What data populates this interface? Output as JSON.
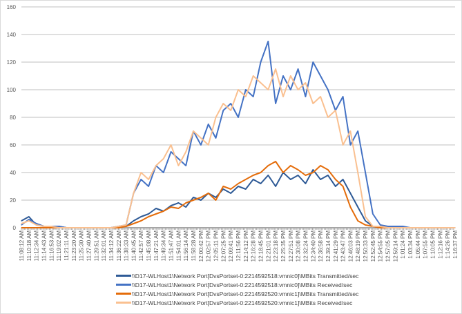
{
  "chart_data": {
    "type": "line",
    "title": "",
    "xlabel": "",
    "ylabel": "",
    "ylim": [
      0,
      160
    ],
    "yticks": [
      0,
      20,
      40,
      60,
      80,
      100,
      120,
      140,
      160
    ],
    "grid": true,
    "legend_position": "bottom",
    "categories": [
      "11:08:12 AM",
      "11:10:18 AM",
      "11:12:34 AM",
      "11:14:43 AM",
      "11:16:53 AM",
      "11:19:02 AM",
      "11:21:11 AM",
      "11:23:20 AM",
      "11:25:30 AM",
      "11:27:40 AM",
      "11:29:51 AM",
      "11:32:01 AM",
      "11:34:12 AM",
      "11:36:22 AM",
      "11:38:33 AM",
      "11:40:45 AM",
      "11:42:57 AM",
      "11:45:08 AM",
      "11:47:21 AM",
      "11:49:34 AM",
      "11:51:47 AM",
      "11:54:01 AM",
      "11:56:14 AM",
      "11:58:28 AM",
      "12:00:42 PM",
      "12:02:57 PM",
      "12:05:11 PM",
      "12:07:25 PM",
      "12:09:41 PM",
      "12:11:56 PM",
      "12:14:12 PM",
      "12:16:28 PM",
      "12:18:45 PM",
      "12:21:01 PM",
      "12:23:18 PM",
      "12:25:35 PM",
      "12:27:51 PM",
      "12:30:08 PM",
      "12:32:24 PM",
      "12:34:40 PM",
      "12:36:58 PM",
      "12:39:14 PM",
      "12:41:29 PM",
      "12:43:47 PM",
      "12:46:03 PM",
      "12:48:19 PM",
      "12:50:33 PM",
      "12:52:45 PM",
      "12:54:55 PM",
      "12:57:05 PM",
      "12:59:14 PM",
      "1:01:24 PM",
      "1:03:34 PM",
      "1:05:44 PM",
      "1:07:55 PM",
      "1:10:05 PM",
      "1:12:16 PM",
      "1:14:26 PM",
      "1:16:37 PM"
    ],
    "series": [
      {
        "name": "\\\\D17-WLHost1\\Network Port[DvsPortset-0:2214592518:vmnic0]\\MBits Transmitted/sec",
        "color": "#2E5A96",
        "values": [
          5,
          8,
          2,
          1,
          1,
          1,
          0,
          0,
          0,
          0,
          0,
          0,
          0,
          1,
          1,
          5,
          8,
          10,
          14,
          12,
          16,
          18,
          15,
          22,
          20,
          25,
          22,
          28,
          25,
          30,
          28,
          35,
          32,
          38,
          30,
          40,
          35,
          38,
          32,
          42,
          35,
          38,
          30,
          35,
          25,
          15,
          5,
          1,
          0,
          0,
          0,
          0,
          0,
          0,
          0,
          0,
          0,
          0,
          0
        ]
      },
      {
        "name": "\\\\D17-WLHost1\\Network Port[DvsPortset-0:2214592518:vmnic0]\\MBits Received/sec",
        "color": "#4472C4",
        "values": [
          2,
          6,
          3,
          1,
          1,
          1,
          0,
          0,
          0,
          0,
          0,
          0,
          0,
          1,
          2,
          25,
          35,
          30,
          45,
          40,
          55,
          50,
          45,
          70,
          60,
          75,
          65,
          85,
          90,
          80,
          100,
          95,
          120,
          135,
          90,
          110,
          100,
          115,
          95,
          120,
          110,
          100,
          85,
          95,
          60,
          70,
          40,
          10,
          2,
          1,
          1,
          1,
          0,
          0,
          0,
          0,
          0,
          0,
          0
        ]
      },
      {
        "name": "\\\\D17-WLHost1\\Network Port[DvsPortset-0:2214592520:vmnic1]\\MBits Transmitted/sec",
        "color": "#E46C0A",
        "values": [
          0,
          0,
          0,
          0,
          0,
          0,
          0,
          0,
          0,
          0,
          0,
          0,
          0,
          0,
          1,
          3,
          5,
          8,
          10,
          12,
          15,
          14,
          18,
          20,
          22,
          25,
          20,
          30,
          28,
          32,
          35,
          38,
          40,
          45,
          48,
          40,
          45,
          42,
          38,
          40,
          45,
          42,
          35,
          30,
          15,
          5,
          2,
          1,
          0,
          0,
          0,
          0,
          0,
          0,
          0,
          0,
          0,
          0,
          0
        ]
      },
      {
        "name": "\\\\D17-WLHost1\\Network Port[DvsPortset-0:2214592520:vmnic1]\\MBits Received/sec",
        "color": "#FAC090",
        "values": [
          3,
          5,
          2,
          1,
          1,
          0,
          0,
          0,
          0,
          0,
          0,
          0,
          0,
          1,
          2,
          25,
          40,
          35,
          45,
          50,
          60,
          45,
          55,
          70,
          65,
          60,
          80,
          90,
          85,
          100,
          95,
          110,
          105,
          100,
          115,
          95,
          110,
          100,
          105,
          90,
          95,
          80,
          85,
          60,
          70,
          40,
          8,
          1,
          1,
          0,
          0,
          0,
          0,
          0,
          0,
          0,
          0,
          0,
          0
        ]
      }
    ]
  }
}
